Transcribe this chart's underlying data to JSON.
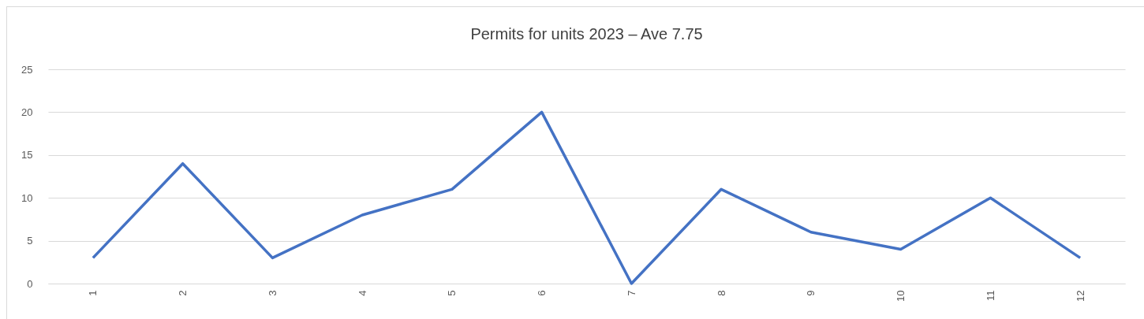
{
  "chart_data": {
    "type": "line",
    "title": "Permits for units   2023 – Ave 7.75",
    "categories": [
      "1",
      "2",
      "3",
      "4",
      "5",
      "6",
      "7",
      "8",
      "9",
      "10",
      "11",
      "12"
    ],
    "series": [
      {
        "color": "#4472c4",
        "values": [
          3,
          14,
          3,
          8,
          11,
          20,
          0,
          11,
          6,
          4,
          10,
          3
        ]
      }
    ],
    "ylim": [
      0,
      25
    ],
    "yticks": [
      0,
      5,
      10,
      15,
      20,
      25
    ],
    "grid": "y"
  }
}
